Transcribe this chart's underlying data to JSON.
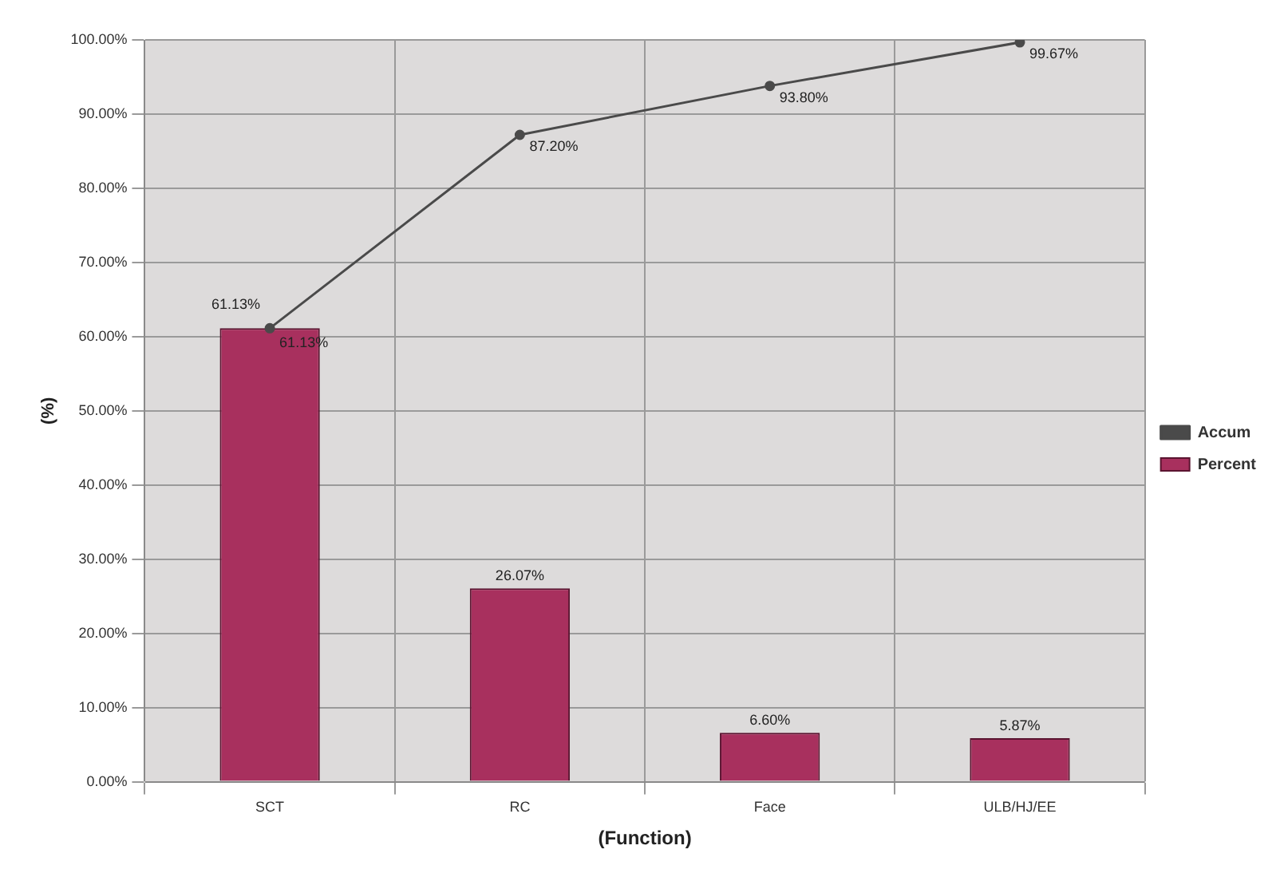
{
  "chart_data": {
    "type": "bar",
    "xlabel": "(Function)",
    "ylabel": "(%)",
    "categories": [
      "SCT",
      "RC",
      "Face",
      "ULB/HJ/EE"
    ],
    "series": [
      {
        "name": "Percent",
        "color": "#a8305e",
        "values": [
          61.13,
          26.07,
          6.6,
          5.87
        ],
        "value_labels": [
          "61.13%",
          "26.07%",
          "6.60%",
          "5.87%"
        ]
      },
      {
        "name": "Accum",
        "type": "line",
        "color": "#4a4a4a",
        "values": [
          61.13,
          87.2,
          93.8,
          99.67
        ],
        "value_labels": [
          "61.13%",
          "87.20%",
          "93.80%",
          "99.67%"
        ],
        "marker": "circle"
      }
    ],
    "ylim": [
      0,
      100
    ],
    "yticks": [
      {
        "value": 0,
        "label": "0.00%"
      },
      {
        "value": 10,
        "label": "10.00%"
      },
      {
        "value": 20,
        "label": "20.00%"
      },
      {
        "value": 30,
        "label": "30.00%"
      },
      {
        "value": 40,
        "label": "40.00%"
      },
      {
        "value": 50,
        "label": "50.00%"
      },
      {
        "value": 60,
        "label": "60.00%"
      },
      {
        "value": 70,
        "label": "70.00%"
      },
      {
        "value": 80,
        "label": "80.00%"
      },
      {
        "value": 90,
        "label": "90.00%"
      },
      {
        "value": 100,
        "label": "100.00%"
      }
    ],
    "grid": true,
    "legend": "right"
  }
}
